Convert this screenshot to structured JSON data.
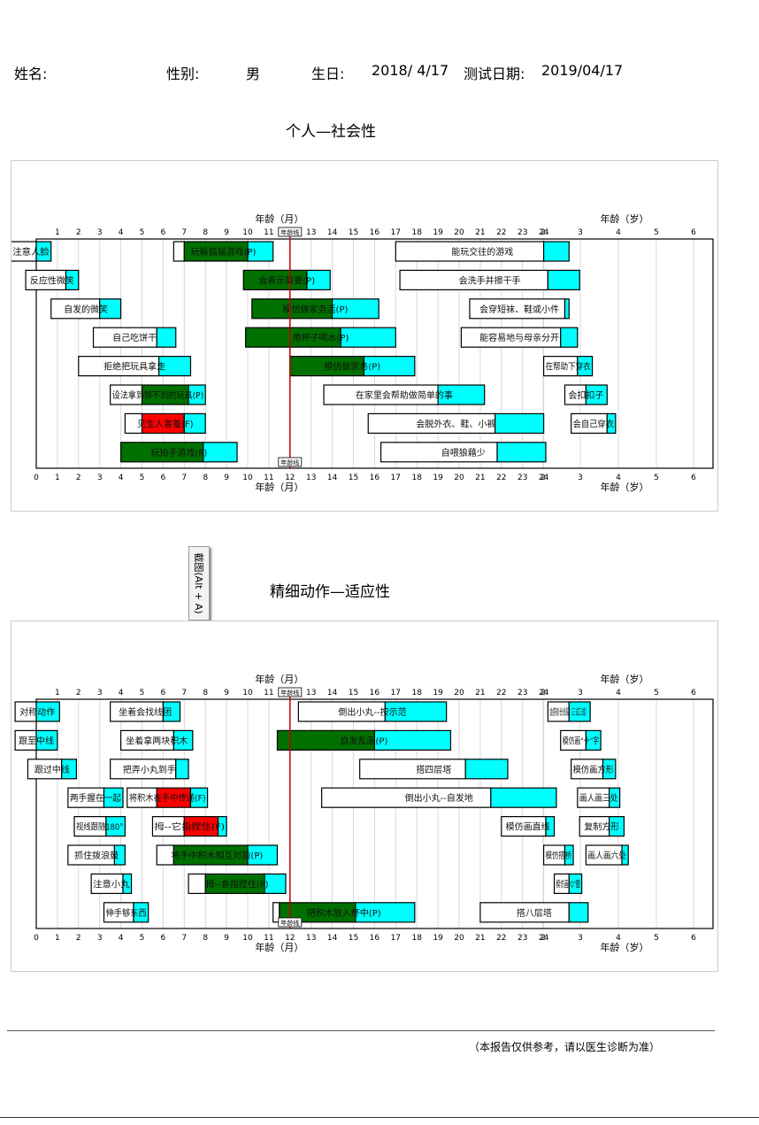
{
  "header": {
    "name_label": "姓名:",
    "sex_label": "性别:",
    "sex_value": "男",
    "birth_label": "生日:",
    "birth_value": "2018/ 4/17",
    "test_label": "测试日期:",
    "test_value": "2019/04/17"
  },
  "tooltip": "截图(Alt + A)",
  "footer": "（本报告仅供参考，请以医生诊断为准）",
  "colors": {
    "green": "#007000",
    "cyan": "#00ffff",
    "red": "#ff0000",
    "age_line": "#c00000"
  },
  "chart_data": [
    {
      "type": "gantt",
      "title": "个人—社会性",
      "xlabel_month": "年龄（月）",
      "xlabel_year": "年龄（岁）",
      "marker_label": "年龄线",
      "marker_month": 12,
      "month_ticks_top": [
        "1",
        "2",
        "3",
        "4",
        "5",
        "6",
        "7",
        "8",
        "9",
        "10",
        "11",
        "12",
        "13",
        "14",
        "15",
        "16",
        "17",
        "18",
        "19",
        "20",
        "21",
        "22",
        "23",
        "24"
      ],
      "month_ticks_bottom": [
        "0",
        "1",
        "2",
        "3",
        "4",
        "5",
        "6",
        "7",
        "8",
        "9",
        "10",
        "11",
        "12",
        "13",
        "14",
        "15",
        "16",
        "17",
        "18",
        "19",
        "20",
        "21",
        "22",
        "23",
        "24"
      ],
      "year_ticks": [
        "2",
        "3",
        "4",
        "5",
        "6"
      ],
      "items": [
        {
          "label": "注意人脸",
          "row": 0,
          "start": -1.2,
          "p25": 0.0,
          "p75": 0.0,
          "end": 0.7,
          "status": ""
        },
        {
          "label": "玩躲猫猫游戏(P)",
          "row": 0,
          "start": 6.5,
          "p25": 7.0,
          "p75": 10.0,
          "end": 11.2,
          "status": "P"
        },
        {
          "label": "能玩交往的游戏",
          "row": 0,
          "start": 17.0,
          "p25": 24.0,
          "p75": 24.0,
          "end": 25.2,
          "status": ""
        },
        {
          "label": "反应性微笑",
          "row": 1,
          "start": -0.5,
          "p25": 1.4,
          "p75": 1.4,
          "end": 2.0,
          "status": ""
        },
        {
          "label": "会表示需要(P)",
          "row": 1,
          "start": 9.8,
          "p25": 9.8,
          "p75": 12.8,
          "end": 13.9,
          "status": "P"
        },
        {
          "label": "会洗手并擦干手",
          "row": 1,
          "start": 17.2,
          "p25": 24.2,
          "p75": 24.2,
          "end": 25.7,
          "status": ""
        },
        {
          "label": "自发的微笑",
          "row": 2,
          "start": 0.7,
          "p25": 3.0,
          "p75": 3.0,
          "end": 4.0,
          "status": ""
        },
        {
          "label": "模仿做家务活(P)",
          "row": 2,
          "start": 10.2,
          "p25": 10.2,
          "p75": 14.0,
          "end": 16.2,
          "status": "P"
        },
        {
          "label": "会穿短袜、鞋或小件",
          "row": 2,
          "start": 20.5,
          "p25": 25.0,
          "p75": 25.0,
          "end": 25.2,
          "status": ""
        },
        {
          "label": "自己吃饼干",
          "row": 3,
          "start": 2.7,
          "p25": 5.7,
          "p75": 5.7,
          "end": 6.6,
          "status": ""
        },
        {
          "label": "用杯子喝水(P)",
          "row": 3,
          "start": 9.9,
          "p25": 9.9,
          "p75": 14.4,
          "end": 17.0,
          "status": "P"
        },
        {
          "label": "能容易地与母亲分开",
          "row": 3,
          "start": 20.1,
          "p25": 24.8,
          "p75": 24.8,
          "end": 25.6,
          "status": ""
        },
        {
          "label": "拒绝把玩具拿走",
          "row": 4,
          "start": 2.0,
          "p25": 5.8,
          "p75": 5.8,
          "end": 7.3,
          "status": ""
        },
        {
          "label": "模仿做家务(P)",
          "row": 4,
          "start": 12.0,
          "p25": 12.0,
          "p75": 15.5,
          "end": 17.9,
          "status": "P"
        },
        {
          "label": "在帮助下穿衣",
          "row": 4,
          "start": 24.0,
          "p25": 25.6,
          "p75": 25.6,
          "end": 26.3,
          "status": ""
        },
        {
          "label": "设法拿到够不到的玩具(P)",
          "row": 5,
          "start": 3.5,
          "p25": 5.0,
          "p75": 7.2,
          "end": 8.0,
          "status": "P"
        },
        {
          "label": "在家里会帮助做简单的事",
          "row": 5,
          "start": 13.6,
          "p25": 19.0,
          "p75": 19.0,
          "end": 21.2,
          "status": ""
        },
        {
          "label": "会扣扣子",
          "row": 5,
          "start": 25.0,
          "p25": 26.0,
          "p75": 26.0,
          "end": 27.0,
          "status": ""
        },
        {
          "label": "见生人害羞(F)",
          "row": 6,
          "start": 4.2,
          "p25": 5.0,
          "p75": 7.0,
          "end": 8.0,
          "status": "F"
        },
        {
          "label": "会脱外衣、鞋、小裤",
          "row": 6,
          "start": 15.7,
          "p25": 21.7,
          "p75": 21.7,
          "end": 24.0,
          "status": ""
        },
        {
          "label": "会自己穿衣",
          "row": 6,
          "start": 25.3,
          "p25": 27.0,
          "p75": 27.0,
          "end": 27.4,
          "status": ""
        },
        {
          "label": "玩拍手游戏(P)",
          "row": 7,
          "start": 4.0,
          "p25": 4.0,
          "p75": 7.9,
          "end": 9.5,
          "status": "P"
        },
        {
          "label": "自喂狼藉少",
          "row": 7,
          "start": 16.3,
          "p25": 21.8,
          "p75": 21.8,
          "end": 24.1,
          "status": ""
        }
      ]
    },
    {
      "type": "gantt",
      "title": "精细动作—适应性",
      "xlabel_month": "年龄（月）",
      "xlabel_year": "年龄（岁）",
      "marker_label": "年龄线",
      "marker_month": 12,
      "month_ticks_top": [
        "1",
        "2",
        "3",
        "4",
        "5",
        "6",
        "7",
        "8",
        "9",
        "10",
        "11",
        "12",
        "13",
        "14",
        "15",
        "16",
        "17",
        "18",
        "19",
        "20",
        "21",
        "22",
        "23",
        "24"
      ],
      "month_ticks_bottom": [
        "0",
        "1",
        "2",
        "3",
        "4",
        "5",
        "6",
        "7",
        "8",
        "9",
        "10",
        "11",
        "12",
        "13",
        "14",
        "15",
        "16",
        "17",
        "18",
        "19",
        "20",
        "21",
        "22",
        "23",
        "24"
      ],
      "year_ticks": [
        "2",
        "3",
        "4",
        "5",
        "6"
      ],
      "items": [
        {
          "label": "对称动作",
          "row": 0,
          "start": -1.0,
          "p25": 0.0,
          "p75": 0.0,
          "end": 1.1,
          "status": ""
        },
        {
          "label": "坐着会找线团",
          "row": 0,
          "start": 3.5,
          "p25": 6.0,
          "p75": 6.0,
          "end": 6.8,
          "status": ""
        },
        {
          "label": "倒出小丸--按示范",
          "row": 0,
          "start": 12.4,
          "p25": 16.5,
          "p75": 16.5,
          "end": 19.4,
          "status": ""
        },
        {
          "label": "会搭较长线段（三试三成）",
          "row": 0,
          "start": 24.2,
          "p25": 25.2,
          "p75": 25.2,
          "end": 26.2,
          "status": ""
        },
        {
          "label": "跟至中线",
          "row": 1,
          "start": -1.0,
          "p25": 0.0,
          "p75": 0.0,
          "end": 1.0,
          "status": ""
        },
        {
          "label": "坐着拿两块积木",
          "row": 1,
          "start": 4.0,
          "p25": 6.5,
          "p75": 6.5,
          "end": 7.4,
          "status": ""
        },
        {
          "label": "自发乱画(P)",
          "row": 1,
          "start": 11.4,
          "p25": 11.4,
          "p75": 16.0,
          "end": 19.6,
          "status": "P"
        },
        {
          "label": "模仿画“十”字",
          "row": 1,
          "start": 24.8,
          "p25": 26.0,
          "p75": 26.0,
          "end": 26.7,
          "status": ""
        },
        {
          "label": "跟过中线",
          "row": 2,
          "start": -0.4,
          "p25": 1.2,
          "p75": 1.2,
          "end": 1.9,
          "status": ""
        },
        {
          "label": "把弄小丸到手",
          "row": 2,
          "start": 3.5,
          "p25": 6.6,
          "p75": 6.6,
          "end": 7.2,
          "status": ""
        },
        {
          "label": "搭四层塔",
          "row": 2,
          "start": 15.3,
          "p25": 20.3,
          "p75": 20.3,
          "end": 22.3,
          "status": ""
        },
        {
          "label": "模仿画方形",
          "row": 2,
          "start": 25.3,
          "p25": 26.8,
          "p75": 26.8,
          "end": 27.4,
          "status": ""
        },
        {
          "label": "两手握在一起",
          "row": 3,
          "start": 1.5,
          "p25": 3.2,
          "p75": 3.2,
          "end": 4.1,
          "status": ""
        },
        {
          "label": "将积木在手中传递(F)",
          "row": 3,
          "start": 4.3,
          "p25": 5.7,
          "p75": 7.3,
          "end": 8.1,
          "status": "F"
        },
        {
          "label": "倒出小丸--自发地",
          "row": 3,
          "start": 13.5,
          "p25": 21.5,
          "p75": 21.5,
          "end": 24.6,
          "status": ""
        },
        {
          "label": "画人画三处",
          "row": 3,
          "start": 25.6,
          "p25": 27.1,
          "p75": 27.1,
          "end": 27.6,
          "status": ""
        },
        {
          "label": "视线跟随180°",
          "row": 4,
          "start": 1.8,
          "p25": 3.3,
          "p75": 3.3,
          "end": 4.2,
          "status": ""
        },
        {
          "label": "拇--它指捏住(F)",
          "row": 4,
          "start": 5.5,
          "p25": 7.0,
          "p75": 8.6,
          "end": 9.0,
          "status": "F"
        },
        {
          "label": "模仿画直线",
          "row": 4,
          "start": 22.0,
          "p25": 24.1,
          "p75": 24.1,
          "end": 24.5,
          "status": ""
        },
        {
          "label": "复制方形",
          "row": 4,
          "start": 25.7,
          "p25": 27.1,
          "p75": 27.1,
          "end": 27.8,
          "status": ""
        },
        {
          "label": "抓住拨浪鼓",
          "row": 5,
          "start": 1.5,
          "p25": 3.7,
          "p75": 3.7,
          "end": 4.2,
          "status": ""
        },
        {
          "label": "将手中积木相互对敲(P)",
          "row": 5,
          "start": 5.7,
          "p25": 6.5,
          "p75": 10.0,
          "end": 11.4,
          "status": "P"
        },
        {
          "label": "模仿搭桥",
          "row": 5,
          "start": 24.0,
          "p25": 25.0,
          "p75": 25.0,
          "end": 25.4,
          "status": ""
        },
        {
          "label": "画人画六处",
          "row": 5,
          "start": 26.0,
          "p25": 27.7,
          "p75": 27.7,
          "end": 28.0,
          "status": ""
        },
        {
          "label": "注意小丸",
          "row": 6,
          "start": 2.6,
          "p25": 4.1,
          "p75": 4.1,
          "end": 4.5,
          "status": ""
        },
        {
          "label": "拇--食指捏住(P)",
          "row": 6,
          "start": 7.2,
          "p25": 8.0,
          "p75": 10.8,
          "end": 11.8,
          "status": "P"
        },
        {
          "label": "模仿画“O”圈",
          "row": 6,
          "start": 24.5,
          "p25": 25.2,
          "p75": 25.2,
          "end": 25.8,
          "status": ""
        },
        {
          "label": "伸手够东西",
          "row": 7,
          "start": 3.2,
          "p25": 4.6,
          "p75": 4.6,
          "end": 5.3,
          "status": ""
        },
        {
          "label": "把积木放入杯中(P)",
          "row": 7,
          "start": 11.2,
          "p25": 11.5,
          "p75": 15.1,
          "end": 17.9,
          "status": "P"
        },
        {
          "label": "搭八层塔",
          "row": 7,
          "start": 21.0,
          "p25": 25.2,
          "p75": 25.2,
          "end": 26.1,
          "status": ""
        }
      ]
    }
  ]
}
